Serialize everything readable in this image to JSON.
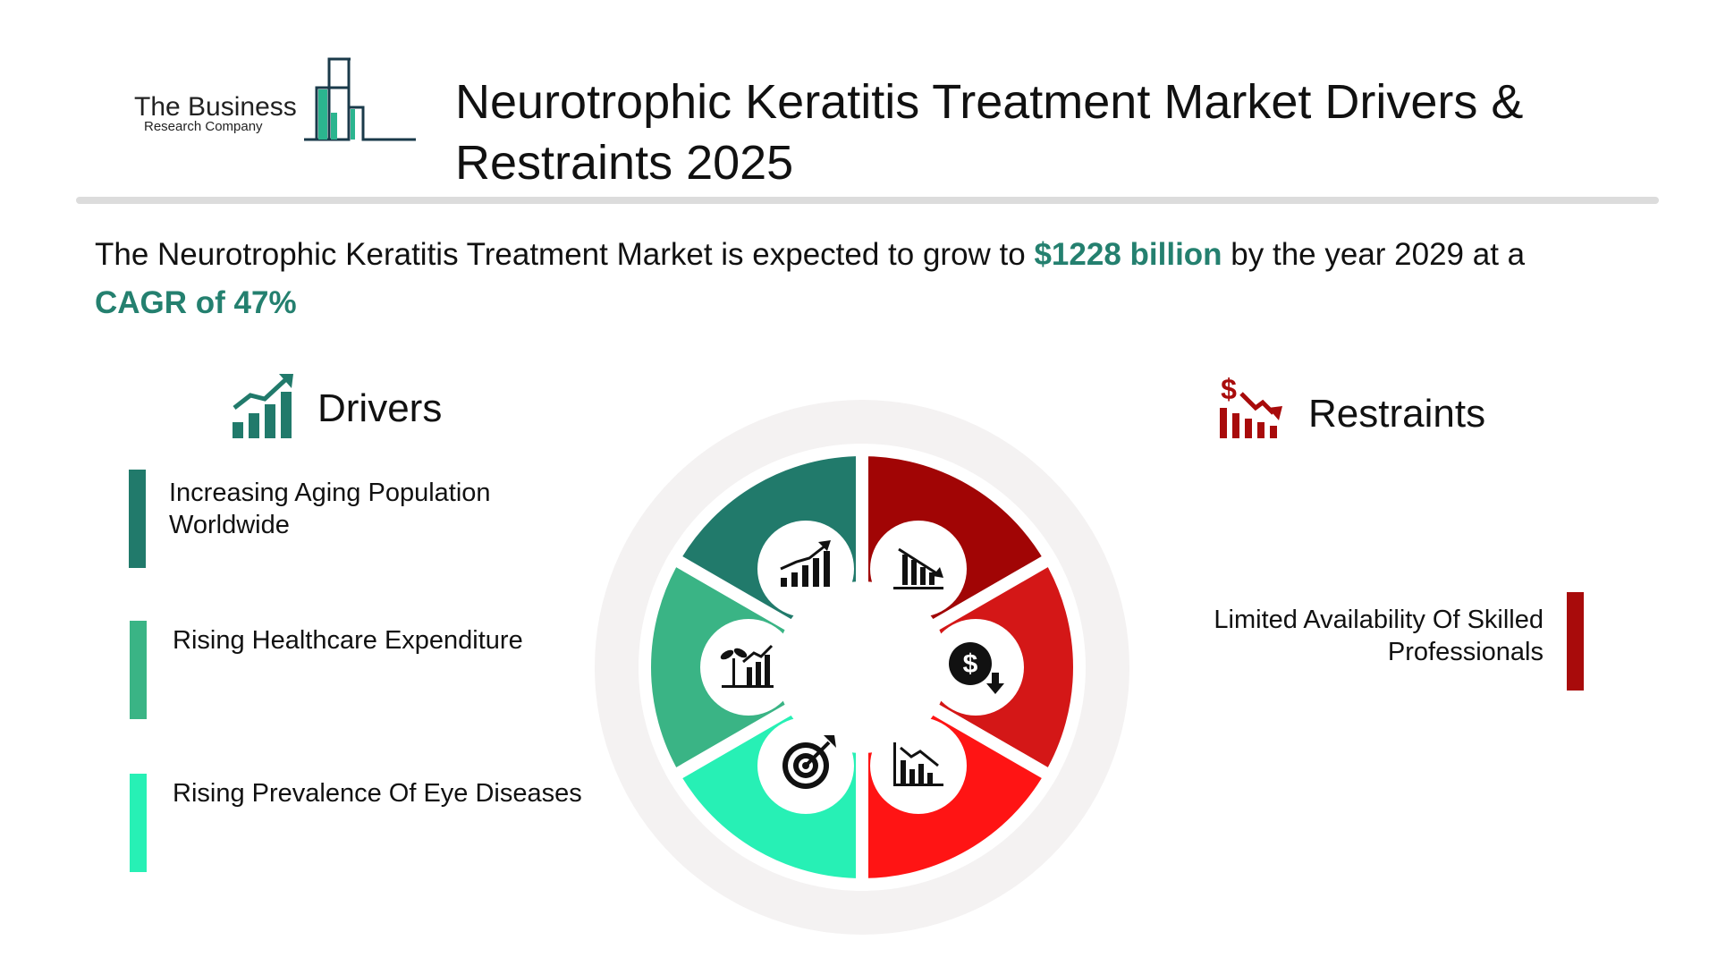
{
  "brand": {
    "name_line1": "The Business",
    "name_line2": "Research Company"
  },
  "title": "Neurotrophic Keratitis Treatment Market Drivers & Restraints 2025",
  "summary": {
    "prefix": "The Neurotrophic Keratitis Treatment Market is expected to grow to ",
    "value": "$1228 billion",
    "middle": " by the year 2029 at a ",
    "cagr": "CAGR of 47%"
  },
  "drivers": {
    "heading": "Drivers",
    "icon": "growth-chart-icon",
    "items": [
      {
        "label": "Increasing Aging Population Worldwide",
        "color": "#217a6b"
      },
      {
        "label": "Rising Healthcare Expenditure",
        "color": "#3ab485"
      },
      {
        "label": "Rising Prevalence Of Eye Diseases",
        "color": "#27f0b5"
      }
    ]
  },
  "restraints": {
    "heading": "Restraints",
    "icon": "dollar-decline-icon",
    "items": [
      {
        "label": "Limited Availability Of Skilled Professionals",
        "color": "#a80b0b"
      }
    ]
  },
  "wheel": {
    "segment_colors": [
      "#a10505",
      "#d41717",
      "#ff1414",
      "#27f0b5",
      "#3ab485",
      "#217a6b"
    ],
    "icons": [
      "declining-bar-chart-icon",
      "dollar-down-icon",
      "decline-trend-chart-icon",
      "target-icon",
      "plant-growth-chart-icon",
      "growth-chart-icon"
    ]
  }
}
